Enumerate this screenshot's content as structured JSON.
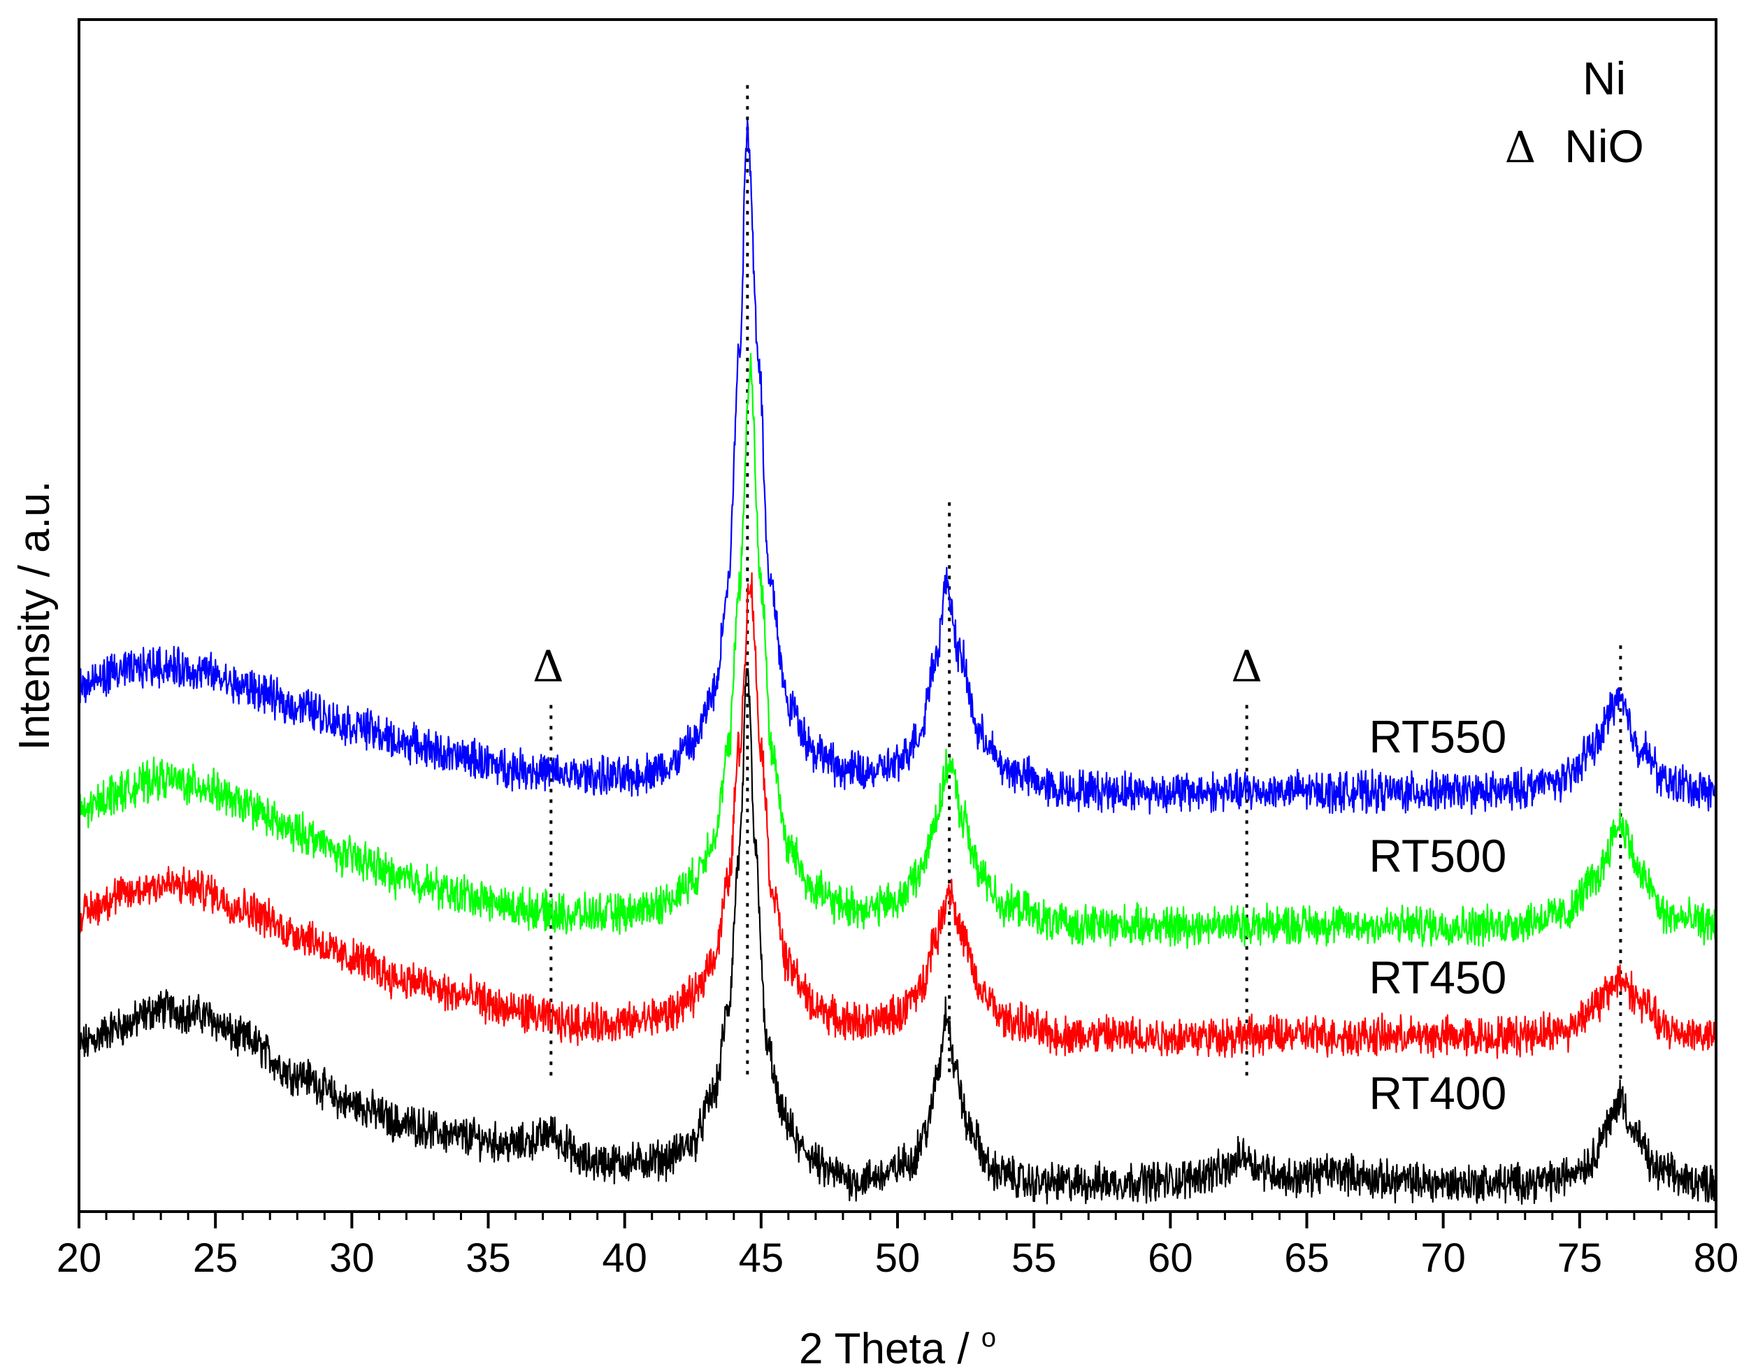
{
  "chart_data": {
    "type": "line",
    "title": "",
    "xlabel": "2 Theta / ",
    "xlabel_degree": "o",
    "ylabel": "Intensity / a.u.",
    "xlim": [
      20,
      80
    ],
    "ylim": [
      0,
      100
    ],
    "xticks": [
      20,
      25,
      30,
      35,
      40,
      45,
      50,
      55,
      60,
      65,
      70,
      75,
      80
    ],
    "xtick_labels": [
      "20",
      "25",
      "30",
      "35",
      "40",
      "45",
      "50",
      "55",
      "60",
      "65",
      "70",
      "75",
      "80"
    ],
    "x_minor_step": 1,
    "grid": false,
    "legend": {
      "position": "top-right",
      "entries": [
        {
          "symbol": "",
          "label": "Ni"
        },
        {
          "symbol": "Δ",
          "label": "NiO"
        }
      ]
    },
    "series": [
      {
        "name": "RT400",
        "label": "RT400",
        "color": "#000000",
        "offset": 0,
        "noise": 1.3,
        "points": [
          [
            20,
            14
          ],
          [
            21.5,
            15.5
          ],
          [
            23,
            17
          ],
          [
            24.5,
            16.5
          ],
          [
            26,
            14.5
          ],
          [
            28,
            11.5
          ],
          [
            30,
            9
          ],
          [
            32,
            7.3
          ],
          [
            34,
            6.3
          ],
          [
            36,
            5.6
          ],
          [
            37,
            6.2
          ],
          [
            37.3,
            6.8
          ],
          [
            37.6,
            6
          ],
          [
            38.5,
            4.2
          ],
          [
            40,
            4.1
          ],
          [
            41.5,
            4.4
          ],
          [
            42.5,
            5.8
          ],
          [
            43.3,
            10
          ],
          [
            43.8,
            17
          ],
          [
            44.2,
            30
          ],
          [
            44.5,
            45
          ],
          [
            44.8,
            30
          ],
          [
            45.2,
            14
          ],
          [
            45.8,
            8
          ],
          [
            46.5,
            5.2
          ],
          [
            47.5,
            3.3
          ],
          [
            48.5,
            2.6
          ],
          [
            49.5,
            3.1
          ],
          [
            50.5,
            4.3
          ],
          [
            51.1,
            7
          ],
          [
            51.5,
            12
          ],
          [
            51.8,
            17
          ],
          [
            52.1,
            12
          ],
          [
            52.6,
            7
          ],
          [
            53.5,
            3.4
          ],
          [
            55,
            2.4
          ],
          [
            57,
            2.4
          ],
          [
            60,
            2.6
          ],
          [
            62,
            3.4
          ],
          [
            62.7,
            4.8
          ],
          [
            63.3,
            3.6
          ],
          [
            64.5,
            2.8
          ],
          [
            66,
            3.3
          ],
          [
            68,
            2.6
          ],
          [
            70,
            2.4
          ],
          [
            72,
            2.4
          ],
          [
            74,
            2.6
          ],
          [
            75.3,
            4
          ],
          [
            76,
            7
          ],
          [
            76.5,
            9.6
          ],
          [
            77,
            6.5
          ],
          [
            77.8,
            3.5
          ],
          [
            79,
            2.6
          ],
          [
            80,
            2.4
          ]
        ]
      },
      {
        "name": "RT450",
        "label": "RT450",
        "color": "#ff0000",
        "offset": 13,
        "noise": 1.3,
        "points": [
          [
            20,
            12
          ],
          [
            21.5,
            13.5
          ],
          [
            23,
            14.5
          ],
          [
            24.5,
            14
          ],
          [
            26,
            12.5
          ],
          [
            28,
            10.3
          ],
          [
            30,
            8.2
          ],
          [
            32,
            6.4
          ],
          [
            34,
            5.1
          ],
          [
            36,
            3.8
          ],
          [
            38,
            2.8
          ],
          [
            40,
            2.8
          ],
          [
            41.5,
            3.5
          ],
          [
            42.5,
            5
          ],
          [
            43.3,
            8.5
          ],
          [
            43.8,
            14.5
          ],
          [
            44.2,
            26
          ],
          [
            44.6,
            40
          ],
          [
            45,
            26
          ],
          [
            45.4,
            14
          ],
          [
            46,
            7.5
          ],
          [
            47,
            4.2
          ],
          [
            48,
            3
          ],
          [
            49,
            2.8
          ],
          [
            50,
            3.5
          ],
          [
            50.8,
            5.5
          ],
          [
            51.4,
            10
          ],
          [
            51.9,
            14
          ],
          [
            52.4,
            10
          ],
          [
            53,
            5.5
          ],
          [
            54,
            3
          ],
          [
            56,
            1.8
          ],
          [
            60,
            1.7
          ],
          [
            64,
            1.8
          ],
          [
            68,
            1.7
          ],
          [
            72,
            1.7
          ],
          [
            74.5,
            2.2
          ],
          [
            75.5,
            4.2
          ],
          [
            76.5,
            6.5
          ],
          [
            77.3,
            4.5
          ],
          [
            78.2,
            2.2
          ],
          [
            80,
            1.7
          ]
        ]
      },
      {
        "name": "RT500",
        "label": "RT500",
        "color": "#00ff00",
        "offset": 22.5,
        "noise": 1.3,
        "points": [
          [
            20,
            11
          ],
          [
            21.5,
            12.8
          ],
          [
            23,
            13.8
          ],
          [
            24.5,
            13.2
          ],
          [
            26,
            11.6
          ],
          [
            28,
            9.3
          ],
          [
            30,
            7.2
          ],
          [
            32,
            5.4
          ],
          [
            34,
            4.1
          ],
          [
            36,
            3
          ],
          [
            38,
            2.4
          ],
          [
            40,
            2.5
          ],
          [
            41.5,
            3.4
          ],
          [
            42.5,
            5.3
          ],
          [
            43.3,
            9
          ],
          [
            43.8,
            16
          ],
          [
            44.2,
            30
          ],
          [
            44.6,
            48
          ],
          [
            45,
            30
          ],
          [
            45.4,
            16
          ],
          [
            46,
            8
          ],
          [
            47,
            4.4
          ],
          [
            48,
            3.1
          ],
          [
            49,
            2.9
          ],
          [
            50,
            3.6
          ],
          [
            50.8,
            5.8
          ],
          [
            51.4,
            10.5
          ],
          [
            51.9,
            15
          ],
          [
            52.4,
            10.5
          ],
          [
            53,
            5.8
          ],
          [
            54,
            3.1
          ],
          [
            56,
            1.6
          ],
          [
            60,
            1.5
          ],
          [
            64,
            1.6
          ],
          [
            68,
            1.5
          ],
          [
            72,
            1.5
          ],
          [
            74.5,
            2.4
          ],
          [
            75.5,
            5.2
          ],
          [
            76.5,
            10
          ],
          [
            77.3,
            5.5
          ],
          [
            78.2,
            2.2
          ],
          [
            80,
            1.6
          ]
        ]
      },
      {
        "name": "RT550",
        "label": "RT550",
        "color": "#0000ff",
        "offset": 34,
        "noise": 1.3,
        "points": [
          [
            20,
            10
          ],
          [
            21.5,
            11.3
          ],
          [
            23,
            11.8
          ],
          [
            24.5,
            11.3
          ],
          [
            26,
            10
          ],
          [
            28,
            8.4
          ],
          [
            30,
            6.8
          ],
          [
            32,
            5.3
          ],
          [
            34,
            4.1
          ],
          [
            36,
            3.2
          ],
          [
            38,
            2.6
          ],
          [
            40,
            2.4
          ],
          [
            41.5,
            3.2
          ],
          [
            42.5,
            5.2
          ],
          [
            43.3,
            9.5
          ],
          [
            43.8,
            19
          ],
          [
            44.2,
            38
          ],
          [
            44.5,
            57
          ],
          [
            44.9,
            38
          ],
          [
            45.3,
            19
          ],
          [
            46,
            8.5
          ],
          [
            47,
            4.6
          ],
          [
            48,
            3.1
          ],
          [
            49,
            2.8
          ],
          [
            50,
            3.5
          ],
          [
            50.8,
            6
          ],
          [
            51.4,
            12.5
          ],
          [
            51.8,
            18.5
          ],
          [
            52.3,
            12.5
          ],
          [
            53,
            6
          ],
          [
            54,
            3
          ],
          [
            56,
            1.4
          ],
          [
            60,
            1.2
          ],
          [
            64,
            1.3
          ],
          [
            68,
            1.2
          ],
          [
            72,
            1.2
          ],
          [
            74.5,
            2.2
          ],
          [
            75.5,
            5
          ],
          [
            76.4,
            9
          ],
          [
            77.2,
            5
          ],
          [
            78.2,
            2
          ],
          [
            80,
            1.2
          ]
        ]
      }
    ],
    "reference_lines": [
      {
        "phase": "Ni",
        "x": 44.5,
        "y_top": 94.5
      },
      {
        "phase": "Ni",
        "x": 51.9,
        "y_top": 59.5
      },
      {
        "phase": "Ni",
        "x": 76.5,
        "y_top": 47.5
      },
      {
        "phase": "NiO",
        "x": 37.3,
        "y_top": 42.5
      },
      {
        "phase": "NiO",
        "x": 62.8,
        "y_top": 42.5
      }
    ],
    "markers": [
      {
        "symbol": "Δ",
        "x": 37.2,
        "y": 44.5
      },
      {
        "symbol": "Δ",
        "x": 62.8,
        "y": 44.5
      }
    ]
  }
}
